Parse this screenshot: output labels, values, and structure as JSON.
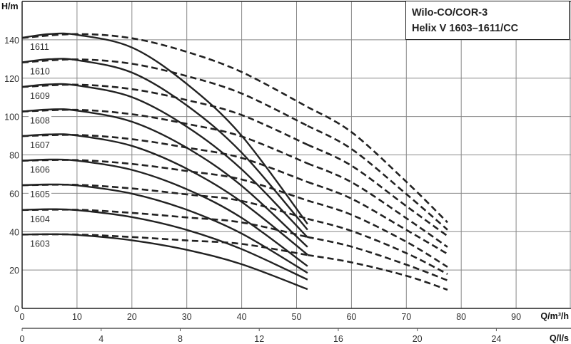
{
  "chart_data": {
    "type": "line",
    "title": [
      "Wilo-CO/COR-3",
      "Helix V 1603–1611/CC"
    ],
    "ylabel": "H/m",
    "xlabel": "Q/m³/h",
    "x2label": "Q/l/s",
    "xlim": [
      0,
      100
    ],
    "ylim": [
      0,
      160
    ],
    "grid": true,
    "x_ticks": [
      0,
      10,
      20,
      30,
      40,
      50,
      60,
      70,
      80,
      90
    ],
    "y_ticks": [
      0,
      20,
      40,
      60,
      80,
      100,
      120,
      140
    ],
    "x2_ticks": [
      0,
      4,
      8,
      12,
      16,
      20,
      24
    ],
    "line_color": "#222222",
    "series": [
      {
        "name": "1603",
        "solid": {
          "x": [
            0,
            5,
            10,
            20,
            30,
            40,
            52
          ],
          "y": [
            38.5,
            38.7,
            38.3,
            35.5,
            30.5,
            23,
            10
          ]
        },
        "dashed": {
          "x": [
            0,
            10,
            20,
            30,
            40,
            52,
            60,
            70,
            77.5
          ],
          "y": [
            38.5,
            38.5,
            37.2,
            35.4,
            33.6,
            27.8,
            24,
            17,
            9.7
          ]
        }
      },
      {
        "name": "1604",
        "solid": {
          "x": [
            0,
            5,
            10,
            20,
            30,
            40,
            52
          ],
          "y": [
            51.3,
            51.7,
            51.2,
            47.6,
            40.9,
            30.9,
            15
          ]
        },
        "dashed": {
          "x": [
            0,
            10,
            20,
            30,
            40,
            52,
            60,
            70,
            77.5
          ],
          "y": [
            51.3,
            51.4,
            49.8,
            47.4,
            44.8,
            37.2,
            32.2,
            22.8,
            14.6
          ]
        }
      },
      {
        "name": "1605",
        "solid": {
          "x": [
            0,
            5,
            10,
            20,
            30,
            40,
            52
          ],
          "y": [
            64.2,
            64.6,
            64.1,
            59.8,
            51.4,
            39,
            18.5
          ]
        },
        "dashed": {
          "x": [
            0,
            10,
            20,
            30,
            40,
            52,
            60,
            70,
            77.5
          ],
          "y": [
            64.2,
            64.4,
            62.5,
            59.4,
            56,
            46.7,
            40.4,
            28.8,
            17.9
          ]
        }
      },
      {
        "name": "1606",
        "solid": {
          "x": [
            0,
            5,
            10,
            20,
            30,
            40,
            52
          ],
          "y": [
            77,
            77.6,
            77,
            72.2,
            62.1,
            47.2,
            22
          ]
        },
        "dashed": {
          "x": [
            0,
            10,
            20,
            30,
            40,
            52,
            60,
            70,
            77.5
          ],
          "y": [
            77,
            77.3,
            75.3,
            71.6,
            67.2,
            56.2,
            48.8,
            34.7,
            21.6
          ]
        }
      },
      {
        "name": "1607",
        "solid": {
          "x": [
            0,
            5,
            10,
            20,
            30,
            40,
            52
          ],
          "y": [
            89.8,
            90.7,
            90.1,
            84.7,
            72.8,
            55.5,
            28
          ]
        },
        "dashed": {
          "x": [
            0,
            10,
            20,
            30,
            40,
            52,
            60,
            70,
            77.5
          ],
          "y": [
            89.8,
            90.4,
            88.2,
            83.8,
            78.4,
            65.9,
            57.2,
            40.9,
            28.4
          ]
        }
      },
      {
        "name": "1608",
        "solid": {
          "x": [
            0,
            5,
            10,
            20,
            30,
            40,
            52
          ],
          "y": [
            102.6,
            103.7,
            103.1,
            97.3,
            83.7,
            63.9,
            32
          ]
        },
        "dashed": {
          "x": [
            0,
            10,
            20,
            30,
            40,
            52,
            60,
            70,
            77.5
          ],
          "y": [
            102.6,
            103.5,
            101.2,
            96.2,
            89.6,
            75.6,
            65.8,
            47,
            32
          ]
        }
      },
      {
        "name": "1609",
        "solid": {
          "x": [
            0,
            5,
            10,
            20,
            30,
            40,
            52
          ],
          "y": [
            115.5,
            116.8,
            116.2,
            110.1,
            94.7,
            72.5,
            37
          ]
        },
        "dashed": {
          "x": [
            0,
            10,
            20,
            30,
            40,
            52,
            60,
            70,
            77.5
          ],
          "y": [
            115.4,
            116.6,
            114.3,
            108.6,
            100.8,
            85.3,
            74.4,
            53.3,
            37.7
          ]
        }
      },
      {
        "name": "1610",
        "solid": {
          "x": [
            0,
            5,
            10,
            20,
            30,
            40,
            52
          ],
          "y": [
            128.3,
            129.9,
            129.4,
            122.9,
            105.8,
            81.2,
            41
          ]
        },
        "dashed": {
          "x": [
            0,
            10,
            20,
            30,
            40,
            52,
            60,
            70,
            77.5
          ],
          "y": [
            128.2,
            129.8,
            127.5,
            121.1,
            112,
            95.2,
            83.1,
            59.6,
            41
          ]
        }
      },
      {
        "name": "1611",
        "solid": {
          "x": [
            0,
            5,
            10,
            20,
            30,
            40,
            52
          ],
          "y": [
            141.1,
            143,
            142.6,
            136,
            117,
            90,
            44
          ]
        },
        "dashed": {
          "x": [
            0,
            10,
            20,
            30,
            40,
            52,
            60,
            70,
            77.5
          ],
          "y": [
            141,
            143,
            140.8,
            133.7,
            123.2,
            105,
            91.9,
            66,
            44.8
          ]
        }
      }
    ]
  }
}
